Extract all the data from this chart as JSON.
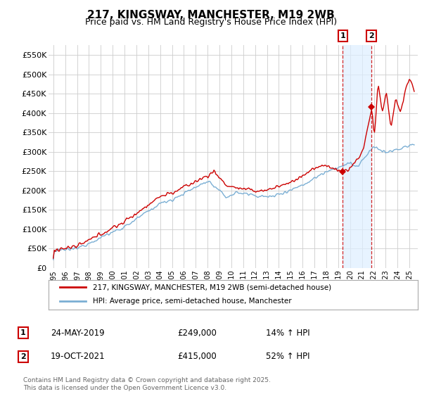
{
  "title": "217, KINGSWAY, MANCHESTER, M19 2WB",
  "subtitle": "Price paid vs. HM Land Registry's House Price Index (HPI)",
  "ylim": [
    0,
    575000
  ],
  "yticks": [
    0,
    50000,
    100000,
    150000,
    200000,
    250000,
    300000,
    350000,
    400000,
    450000,
    500000,
    550000
  ],
  "ytick_labels": [
    "£0",
    "£50K",
    "£100K",
    "£150K",
    "£200K",
    "£250K",
    "£300K",
    "£350K",
    "£400K",
    "£450K",
    "£500K",
    "£550K"
  ],
  "hpi_color": "#7bafd4",
  "price_color": "#cc0000",
  "vline_color": "#cc0000",
  "shade_color": "#ddeeff",
  "annotation1_date": "24-MAY-2019",
  "annotation1_price": "£249,000",
  "annotation1_hpi": "14% ↑ HPI",
  "annotation1_year": 2019.38,
  "annotation1_value": 249000,
  "annotation2_date": "19-OCT-2021",
  "annotation2_price": "£415,000",
  "annotation2_hpi": "52% ↑ HPI",
  "annotation2_year": 2021.79,
  "annotation2_value": 415000,
  "legend_label1": "217, KINGSWAY, MANCHESTER, M19 2WB (semi-detached house)",
  "legend_label2": "HPI: Average price, semi-detached house, Manchester",
  "footnote": "Contains HM Land Registry data © Crown copyright and database right 2025.\nThis data is licensed under the Open Government Licence v3.0.",
  "bg_color": "#ffffff",
  "grid_color": "#cccccc",
  "title_fontsize": 11,
  "subtitle_fontsize": 9
}
